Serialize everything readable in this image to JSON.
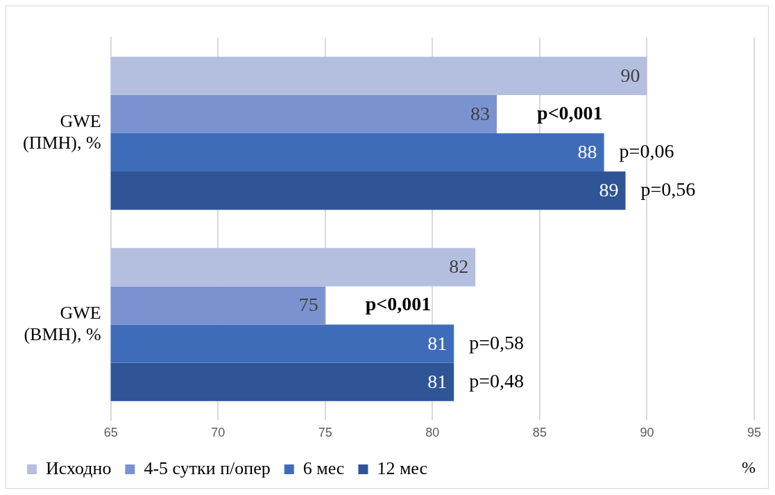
{
  "chart_data": {
    "type": "bar",
    "orientation": "horizontal",
    "categories": [
      "GWE\n(ПМН), %",
      "GWE\n(ВМН), %"
    ],
    "series": [
      {
        "name": "Исходно",
        "color": "#b4bfe0",
        "values": [
          90,
          82
        ]
      },
      {
        "name": "4-5 сутки п/опер",
        "color": "#7a93d0",
        "values": [
          83,
          75
        ]
      },
      {
        "name": "6 мес",
        "color": "#3f6cb8",
        "values": [
          88,
          81
        ]
      },
      {
        "name": "12 мес",
        "color": "#2f5597",
        "values": [
          89,
          81
        ]
      }
    ],
    "xlim": [
      65,
      95
    ],
    "xticks": [
      65,
      70,
      75,
      80,
      85,
      90,
      95
    ],
    "xlabel": "%",
    "grid": "x",
    "legend": "bottom",
    "data_labels": true,
    "annotations": [
      "p<0,001",
      "p=0,06",
      "p=0,56",
      "p<0,001",
      "p=0,58",
      "p=0,48"
    ]
  }
}
